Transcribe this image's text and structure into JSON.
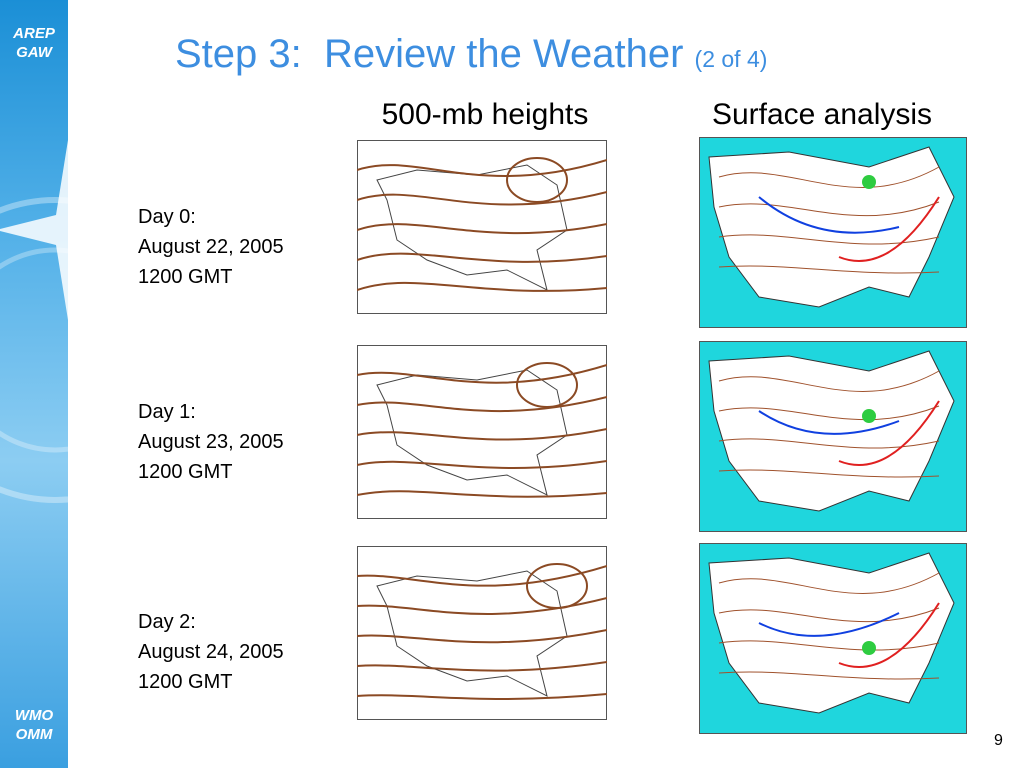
{
  "sidebar": {
    "top": [
      "AREP",
      "GAW"
    ],
    "bottom": [
      "WMO",
      "OMM"
    ]
  },
  "title": {
    "main": "Step 3:  Review the Weather",
    "sub": "(2 of 4)"
  },
  "columns": [
    "500-mb heights",
    "Surface analysis"
  ],
  "rows": [
    {
      "day": "Day 0:",
      "date": "August 22, 2005",
      "time": "1200 GMT"
    },
    {
      "day": "Day 1:",
      "date": "August 23, 2005",
      "time": "1200 GMT"
    },
    {
      "day": "Day 2:",
      "date": "August 24, 2005",
      "time": "1200 GMT"
    }
  ],
  "page_number": "9"
}
